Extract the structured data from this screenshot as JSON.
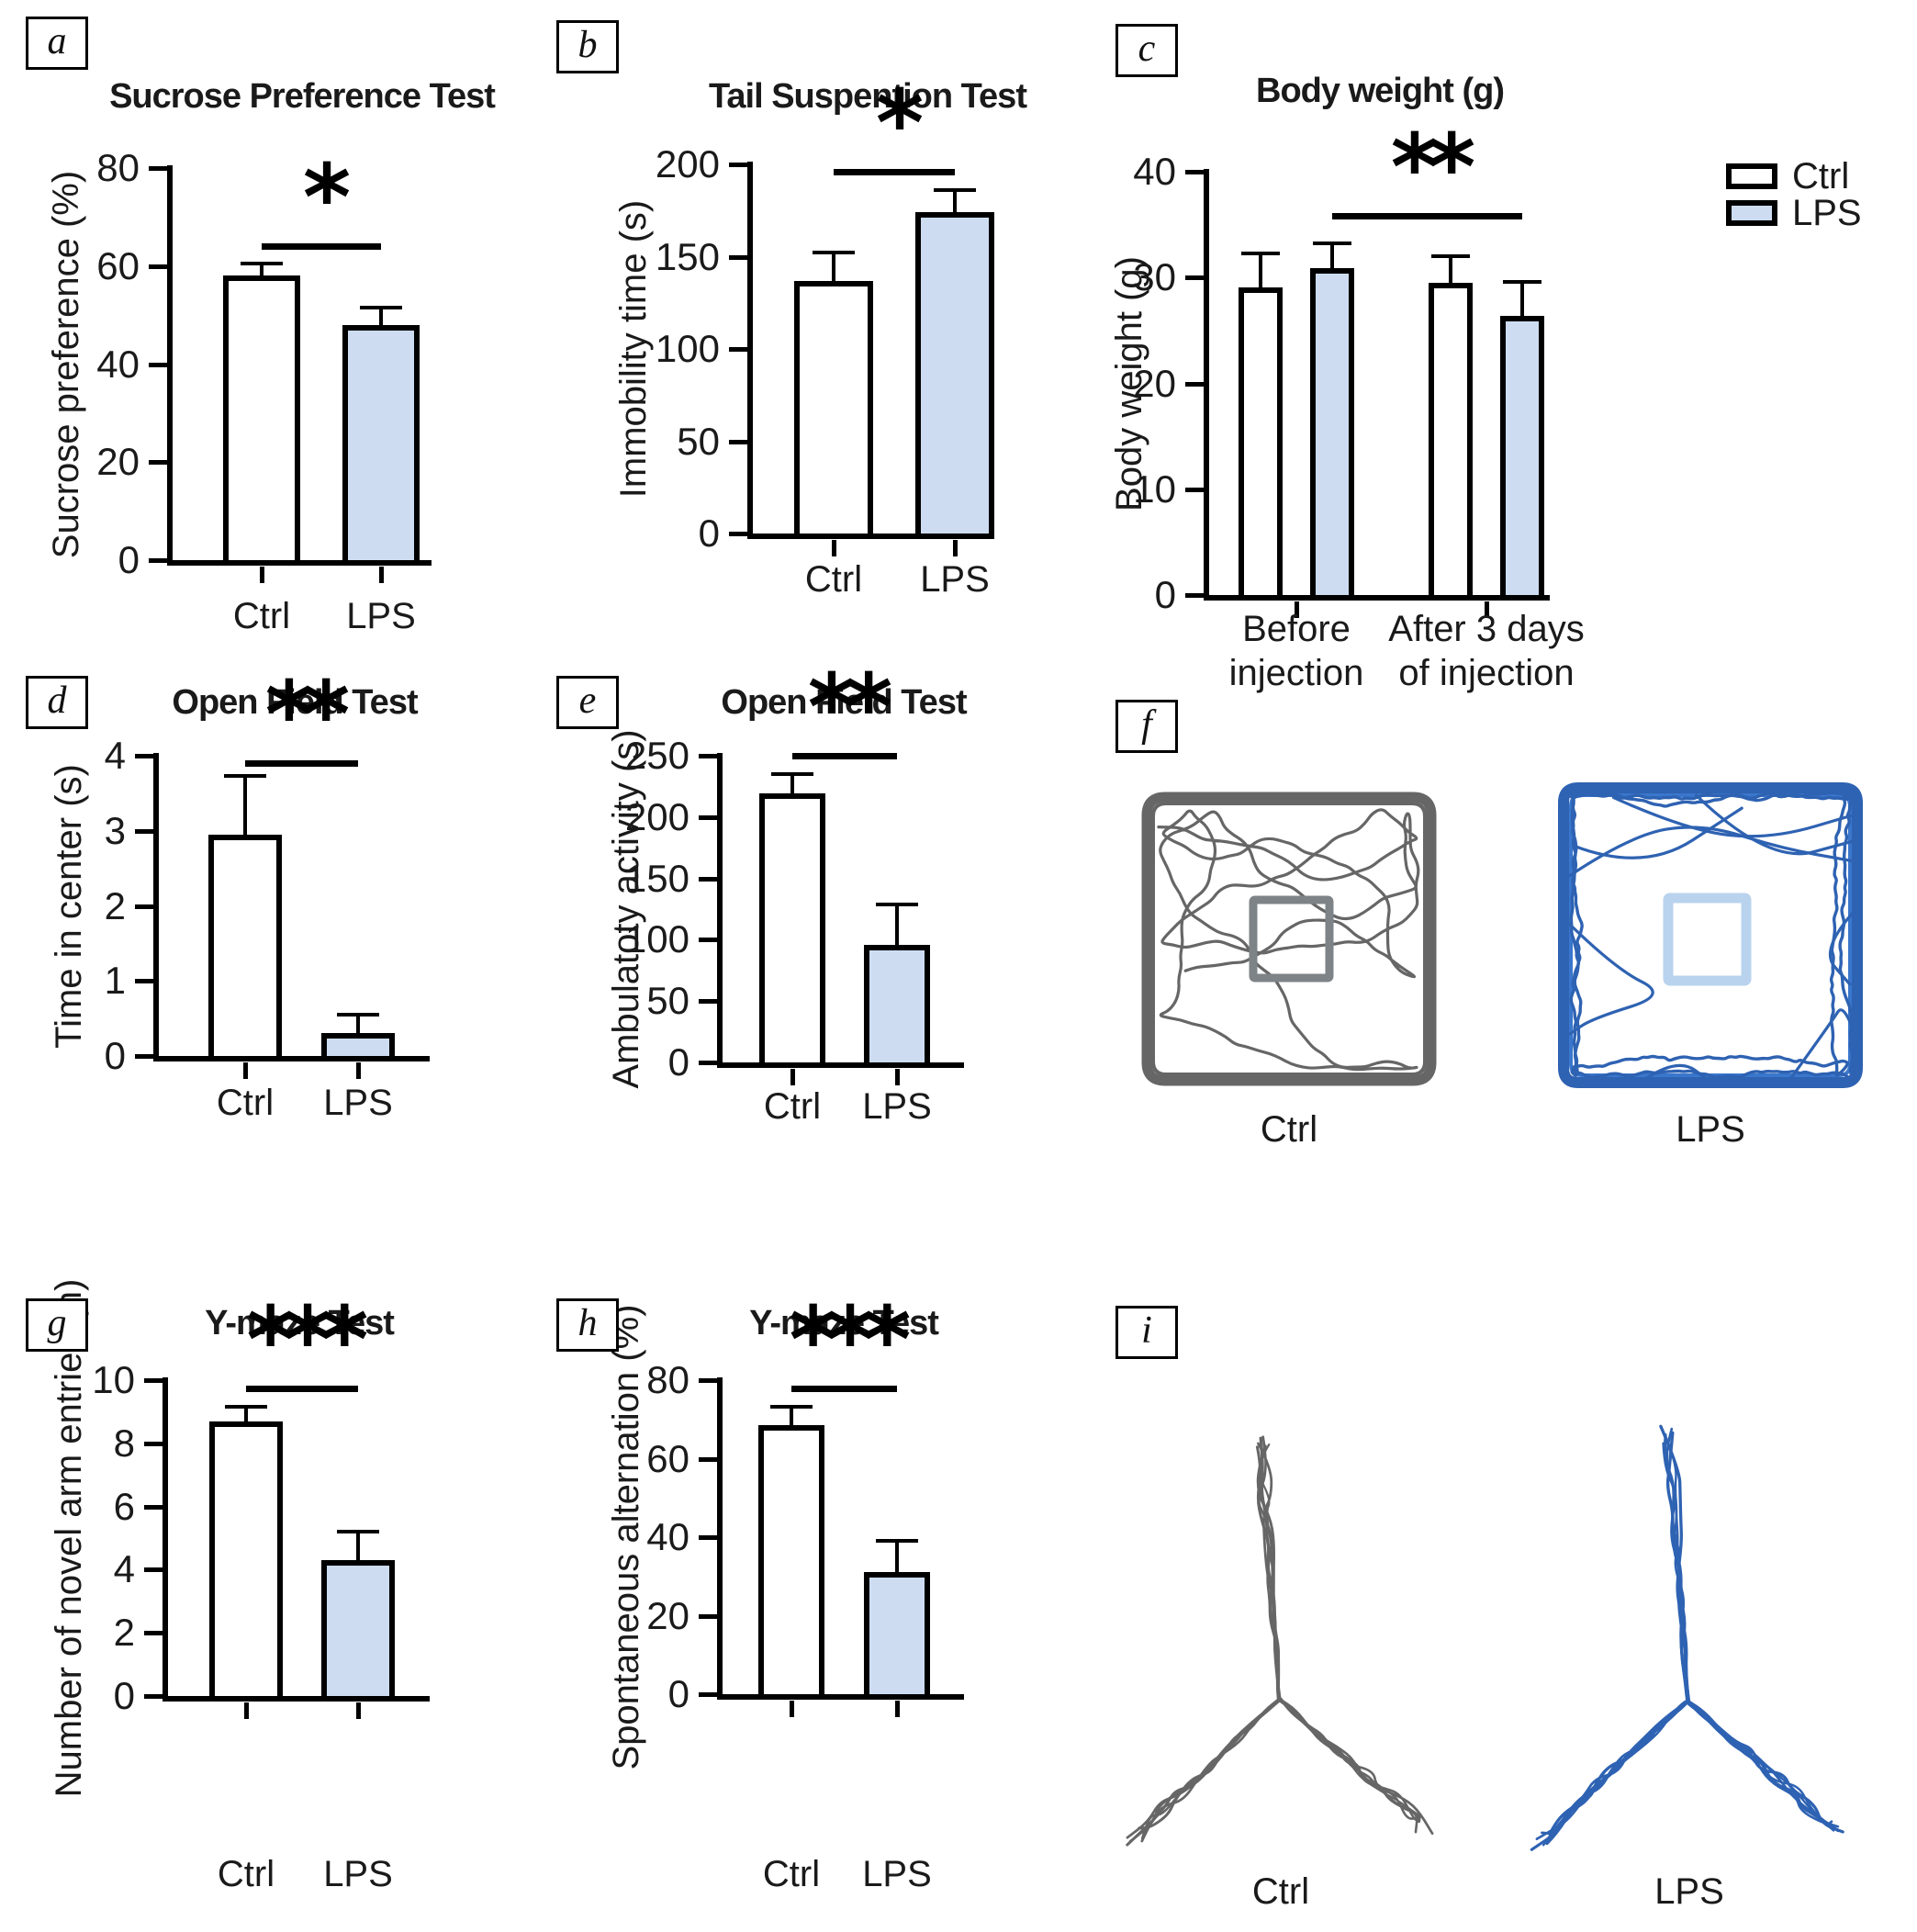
{
  "panels": {
    "a": {
      "tag": "a"
    },
    "b": {
      "tag": "b"
    },
    "c": {
      "tag": "c"
    },
    "d": {
      "tag": "d"
    },
    "e": {
      "tag": "e"
    },
    "f": {
      "tag": "f"
    },
    "g": {
      "tag": "g"
    },
    "h": {
      "tag": "h"
    },
    "i": {
      "tag": "i"
    }
  },
  "colors": {
    "ctrl_fill": "#ffffff",
    "lps_fill": "#cddcf1",
    "axis": "#000000",
    "trace_gray": "#666666",
    "trace_blue": "#2e62b2",
    "center_square_gray": "#7d8387",
    "center_square_blue": "#b9d3ee"
  },
  "chart_data": [
    {
      "panel": "a",
      "type": "bar",
      "title": "Sucrose Preference Test",
      "ylabel": "Sucrose preference (%)",
      "xlabel": "",
      "categories": [
        "Ctrl",
        "LPS"
      ],
      "values": [
        58,
        48
      ],
      "errors": [
        2.5,
        3.5
      ],
      "yticks": [
        0,
        20,
        40,
        60,
        80
      ],
      "ylim": [
        0,
        80
      ],
      "significance": {
        "label": "*",
        "from": 0,
        "to": 1,
        "y": 64
      },
      "grid": false
    },
    {
      "panel": "b",
      "type": "bar",
      "title": "Tail Suspention Test",
      "ylabel": "Immobility time (s)",
      "xlabel": "",
      "categories": [
        "Ctrl",
        "LPS"
      ],
      "values": [
        137,
        174
      ],
      "errors": [
        15,
        12
      ],
      "yticks": [
        0,
        50,
        100,
        150,
        200
      ],
      "ylim": [
        0,
        200
      ],
      "significance": {
        "label": "*",
        "from": 0,
        "to": 1,
        "y": 196
      },
      "grid": false
    },
    {
      "panel": "c",
      "type": "grouped-bar",
      "title": "Body weight (g)",
      "ylabel": "Body weight (g)",
      "xlabel": "",
      "group_labels": [
        [
          "Before",
          "injection"
        ],
        [
          "After 3 days",
          "of injection"
        ]
      ],
      "series": [
        {
          "name": "Ctrl",
          "values": [
            29.1,
            29.5
          ],
          "errors": [
            3.2,
            2.5
          ]
        },
        {
          "name": "LPS",
          "values": [
            30.9,
            26.4
          ],
          "errors": [
            2.3,
            3.2
          ]
        }
      ],
      "yticks": [
        0,
        10,
        20,
        30,
        40
      ],
      "ylim": [
        0,
        40
      ],
      "significance": {
        "label": "**",
        "from": 1,
        "to": 3,
        "y": 35.8
      },
      "legend": [
        "Ctrl",
        "LPS"
      ],
      "legend_position": "top-right",
      "grid": false
    },
    {
      "panel": "d",
      "type": "bar",
      "title": "Open Field Test",
      "ylabel": "Time in center (s)",
      "xlabel": "",
      "categories": [
        "Ctrl",
        "LPS"
      ],
      "values": [
        2.95,
        0.3
      ],
      "errors": [
        0.78,
        0.25
      ],
      "yticks": [
        0,
        1,
        2,
        3,
        4
      ],
      "ylim": [
        0,
        4
      ],
      "significance": {
        "label": "**",
        "from": 0,
        "to": 1,
        "y": 3.9
      },
      "grid": false
    },
    {
      "panel": "e",
      "type": "bar",
      "title": "Open Field Test",
      "ylabel": "Ambulatoty activity (s)",
      "xlabel": "",
      "categories": [
        "Ctrl",
        "LPS"
      ],
      "values": [
        219,
        96
      ],
      "errors": [
        16,
        33
      ],
      "yticks": [
        0,
        50,
        100,
        150,
        200,
        250
      ],
      "ylim": [
        0,
        250
      ],
      "significance": {
        "label": "**",
        "from": 0,
        "to": 1,
        "y": 250
      },
      "grid": false
    },
    {
      "panel": "f",
      "type": "trace",
      "subtype": "open-field-tracks",
      "labels": [
        "Ctrl",
        "LPS"
      ],
      "description": "Open field locomotion traces; Ctrl crosses center, LPS hugs walls"
    },
    {
      "panel": "g",
      "type": "bar",
      "title": "Y-maze Test",
      "ylabel": "Number of novel arm entries (n)",
      "xlabel": "",
      "categories": [
        "Ctrl",
        "LPS"
      ],
      "values": [
        8.7,
        4.3
      ],
      "errors": [
        0.45,
        0.9
      ],
      "yticks": [
        0,
        2,
        4,
        6,
        8,
        10
      ],
      "ylim": [
        0,
        10
      ],
      "significance": {
        "label": "***",
        "from": 0,
        "to": 1,
        "y": 9.75
      },
      "grid": false
    },
    {
      "panel": "h",
      "type": "bar",
      "title": "Y-maze Test",
      "ylabel": "Spontaneous alternation (%)",
      "xlabel": "",
      "categories": [
        "Ctrl",
        "LPS"
      ],
      "values": [
        68.5,
        31
      ],
      "errors": [
        4.7,
        8
      ],
      "yticks": [
        0,
        20,
        40,
        60,
        80
      ],
      "ylim": [
        0,
        80
      ],
      "significance": {
        "label": "***",
        "from": 0,
        "to": 1,
        "y": 77.8
      },
      "grid": false
    },
    {
      "panel": "i",
      "type": "trace",
      "subtype": "y-maze-tracks",
      "labels": [
        "Ctrl",
        "LPS"
      ],
      "description": "Y-maze locomotion traces for Ctrl and LPS groups"
    }
  ]
}
